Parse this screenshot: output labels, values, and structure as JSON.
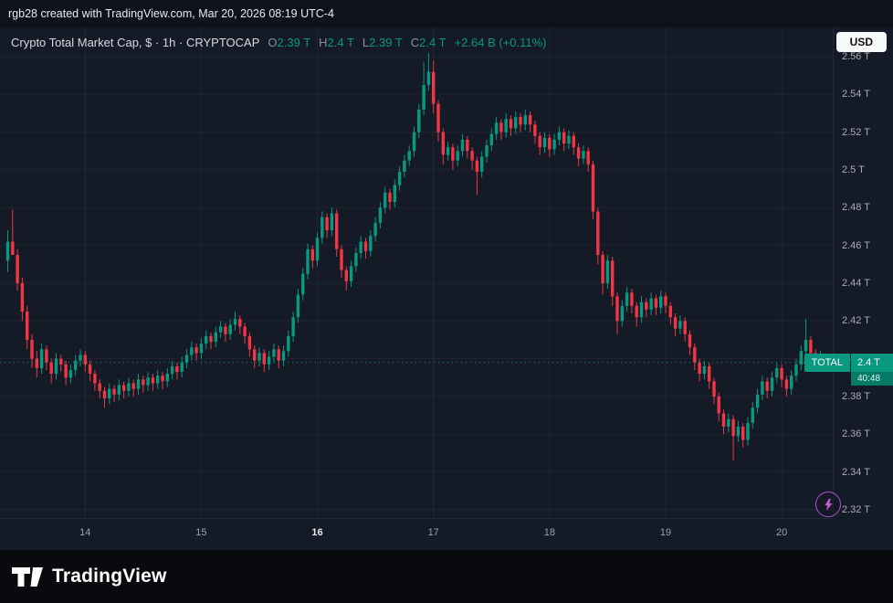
{
  "page": {
    "attribution": "rgb28 created with TradingView.com, Mar 20, 2026 08:19 UTC-4"
  },
  "header": {
    "symbol_title": "Crypto Total Market Cap, $ · 1h · CRYPTOCAP",
    "ohlc": {
      "o_label": "O",
      "o": "2.39 T",
      "h_label": "H",
      "h": "2.4 T",
      "l_label": "L",
      "l": "2.39 T",
      "c_label": "C",
      "c": "2.4 T",
      "change": "+2.64 B (+0.11%)"
    },
    "currency_button": "USD"
  },
  "price_label": {
    "tag": "TOTAL",
    "price": "2.4 T",
    "countdown": "40:48"
  },
  "footer": {
    "brand": "TradingView"
  },
  "colors": {
    "up": "#089981",
    "down": "#f23645",
    "grid": "rgba(160,170,195,0.08)",
    "axis_text": "#a7acb8",
    "label_accent": "#089981"
  },
  "chart_data": {
    "type": "candlestick",
    "title": "Crypto Total Market Cap",
    "symbol": "CRYPTOCAP:TOTAL",
    "interval": "1h",
    "currency": "USD",
    "unit": "trillions USD",
    "ylim": [
      2.3156,
      2.5755
    ],
    "y_ticks": [
      2.56,
      2.54,
      2.52,
      2.5,
      2.48,
      2.46,
      2.44,
      2.42,
      2.4,
      2.38,
      2.36,
      2.34,
      2.32
    ],
    "last_price": 2.398,
    "x_axis": {
      "days": [
        {
          "label": "14",
          "candle_index": 16,
          "bold": false
        },
        {
          "label": "15",
          "candle_index": 40,
          "bold": false
        },
        {
          "label": "16",
          "candle_index": 64,
          "bold": true
        },
        {
          "label": "17",
          "candle_index": 88,
          "bold": false
        },
        {
          "label": "18",
          "candle_index": 112,
          "bold": false
        },
        {
          "label": "19",
          "candle_index": 136,
          "bold": false
        },
        {
          "label": "20",
          "candle_index": 160,
          "bold": false
        }
      ]
    },
    "candles": [
      [
        2.452,
        2.468,
        2.446,
        2.462
      ],
      [
        2.462,
        2.479,
        2.458,
        2.455
      ],
      [
        2.455,
        2.458,
        2.436,
        2.44
      ],
      [
        2.44,
        2.443,
        2.42,
        2.425
      ],
      [
        2.425,
        2.428,
        2.405,
        2.41
      ],
      [
        2.41,
        2.413,
        2.395,
        2.4
      ],
      [
        2.4,
        2.404,
        2.39,
        2.395
      ],
      [
        2.395,
        2.408,
        2.392,
        2.405
      ],
      [
        2.405,
        2.407,
        2.394,
        2.398
      ],
      [
        2.398,
        2.4,
        2.387,
        2.392
      ],
      [
        2.392,
        2.403,
        2.389,
        2.4
      ],
      [
        2.4,
        2.402,
        2.393,
        2.397
      ],
      [
        2.397,
        2.399,
        2.386,
        2.39
      ],
      [
        2.39,
        2.397,
        2.387,
        2.394
      ],
      [
        2.394,
        2.402,
        2.391,
        2.399
      ],
      [
        2.399,
        2.405,
        2.396,
        2.402
      ],
      [
        2.402,
        2.404,
        2.393,
        2.397
      ],
      [
        2.397,
        2.399,
        2.388,
        2.392
      ],
      [
        2.392,
        2.394,
        2.383,
        2.387
      ],
      [
        2.387,
        2.389,
        2.379,
        2.383
      ],
      [
        2.383,
        2.385,
        2.374,
        2.379
      ],
      [
        2.379,
        2.387,
        2.376,
        2.384
      ],
      [
        2.384,
        2.386,
        2.377,
        2.381
      ],
      [
        2.381,
        2.389,
        2.378,
        2.386
      ],
      [
        2.386,
        2.388,
        2.379,
        2.383
      ],
      [
        2.383,
        2.39,
        2.38,
        2.387
      ],
      [
        2.387,
        2.389,
        2.38,
        2.384
      ],
      [
        2.384,
        2.392,
        2.381,
        2.389
      ],
      [
        2.389,
        2.391,
        2.382,
        2.386
      ],
      [
        2.386,
        2.393,
        2.383,
        2.39
      ],
      [
        2.39,
        2.392,
        2.383,
        2.387
      ],
      [
        2.387,
        2.394,
        2.384,
        2.391
      ],
      [
        2.391,
        2.393,
        2.384,
        2.388
      ],
      [
        2.388,
        2.395,
        2.385,
        2.392
      ],
      [
        2.392,
        2.399,
        2.389,
        2.396
      ],
      [
        2.396,
        2.398,
        2.389,
        2.393
      ],
      [
        2.393,
        2.401,
        2.39,
        2.398
      ],
      [
        2.398,
        2.405,
        2.395,
        2.402
      ],
      [
        2.402,
        2.409,
        2.399,
        2.406
      ],
      [
        2.406,
        2.408,
        2.399,
        2.403
      ],
      [
        2.403,
        2.411,
        2.4,
        2.408
      ],
      [
        2.408,
        2.415,
        2.405,
        2.412
      ],
      [
        2.412,
        2.414,
        2.405,
        2.409
      ],
      [
        2.409,
        2.417,
        2.406,
        2.414
      ],
      [
        2.414,
        2.42,
        2.411,
        2.417
      ],
      [
        2.417,
        2.419,
        2.409,
        2.413
      ],
      [
        2.413,
        2.421,
        2.41,
        2.418
      ],
      [
        2.418,
        2.425,
        2.415,
        2.421
      ],
      [
        2.421,
        2.423,
        2.413,
        2.417
      ],
      [
        2.417,
        2.419,
        2.408,
        2.412
      ],
      [
        2.412,
        2.414,
        2.401,
        2.405
      ],
      [
        2.405,
        2.407,
        2.395,
        2.399
      ],
      [
        2.399,
        2.406,
        2.396,
        2.403
      ],
      [
        2.403,
        2.405,
        2.393,
        2.397
      ],
      [
        2.397,
        2.404,
        2.394,
        2.401
      ],
      [
        2.401,
        2.408,
        2.398,
        2.405
      ],
      [
        2.405,
        2.407,
        2.395,
        2.399
      ],
      [
        2.399,
        2.407,
        2.396,
        2.404
      ],
      [
        2.404,
        2.415,
        2.401,
        2.412
      ],
      [
        2.412,
        2.425,
        2.409,
        2.422
      ],
      [
        2.422,
        2.437,
        2.419,
        2.434
      ],
      [
        2.434,
        2.448,
        2.431,
        2.445
      ],
      [
        2.445,
        2.461,
        2.442,
        2.458
      ],
      [
        2.458,
        2.46,
        2.448,
        2.452
      ],
      [
        2.452,
        2.467,
        2.449,
        2.464
      ],
      [
        2.464,
        2.478,
        2.461,
        2.475
      ],
      [
        2.475,
        2.477,
        2.464,
        2.468
      ],
      [
        2.468,
        2.48,
        2.465,
        2.477
      ],
      [
        2.477,
        2.479,
        2.454,
        2.458
      ],
      [
        2.458,
        2.46,
        2.443,
        2.447
      ],
      [
        2.447,
        2.449,
        2.436,
        2.441
      ],
      [
        2.441,
        2.452,
        2.438,
        2.449
      ],
      [
        2.449,
        2.459,
        2.446,
        2.456
      ],
      [
        2.456,
        2.465,
        2.453,
        2.462
      ],
      [
        2.462,
        2.464,
        2.453,
        2.457
      ],
      [
        2.457,
        2.468,
        2.454,
        2.465
      ],
      [
        2.465,
        2.475,
        2.462,
        2.472
      ],
      [
        2.472,
        2.483,
        2.469,
        2.48
      ],
      [
        2.48,
        2.491,
        2.477,
        2.488
      ],
      [
        2.488,
        2.49,
        2.479,
        2.483
      ],
      [
        2.483,
        2.495,
        2.48,
        2.492
      ],
      [
        2.492,
        2.502,
        2.489,
        2.499
      ],
      [
        2.499,
        2.508,
        2.496,
        2.505
      ],
      [
        2.505,
        2.513,
        2.502,
        2.51
      ],
      [
        2.51,
        2.523,
        2.507,
        2.52
      ],
      [
        2.52,
        2.535,
        2.517,
        2.532
      ],
      [
        2.532,
        2.557,
        2.529,
        2.545
      ],
      [
        2.545,
        2.562,
        2.542,
        2.552
      ],
      [
        2.552,
        2.558,
        2.53,
        2.535
      ],
      [
        2.535,
        2.537,
        2.515,
        2.52
      ],
      [
        2.52,
        2.522,
        2.503,
        2.508
      ],
      [
        2.508,
        2.515,
        2.505,
        2.512
      ],
      [
        2.512,
        2.514,
        2.5,
        2.505
      ],
      [
        2.505,
        2.513,
        2.502,
        2.51
      ],
      [
        2.51,
        2.519,
        2.507,
        2.516
      ],
      [
        2.516,
        2.518,
        2.506,
        2.51
      ],
      [
        2.51,
        2.512,
        2.5,
        2.505
      ],
      [
        2.505,
        2.507,
        2.487,
        2.499
      ],
      [
        2.499,
        2.51,
        2.496,
        2.507
      ],
      [
        2.507,
        2.516,
        2.504,
        2.513
      ],
      [
        2.513,
        2.522,
        2.51,
        2.519
      ],
      [
        2.519,
        2.528,
        2.516,
        2.525
      ],
      [
        2.525,
        2.527,
        2.516,
        2.52
      ],
      [
        2.52,
        2.53,
        2.517,
        2.527
      ],
      [
        2.527,
        2.529,
        2.518,
        2.522
      ],
      [
        2.522,
        2.531,
        2.519,
        2.528
      ],
      [
        2.528,
        2.53,
        2.52,
        2.524
      ],
      [
        2.524,
        2.532,
        2.521,
        2.529
      ],
      [
        2.529,
        2.531,
        2.52,
        2.524
      ],
      [
        2.524,
        2.526,
        2.514,
        2.518
      ],
      [
        2.518,
        2.52,
        2.508,
        2.512
      ],
      [
        2.512,
        2.52,
        2.509,
        2.517
      ],
      [
        2.517,
        2.519,
        2.507,
        2.511
      ],
      [
        2.511,
        2.519,
        2.508,
        2.516
      ],
      [
        2.516,
        2.523,
        2.513,
        2.52
      ],
      [
        2.52,
        2.522,
        2.51,
        2.514
      ],
      [
        2.514,
        2.521,
        2.511,
        2.518
      ],
      [
        2.518,
        2.52,
        2.508,
        2.512
      ],
      [
        2.512,
        2.514,
        2.502,
        2.506
      ],
      [
        2.506,
        2.513,
        2.503,
        2.51
      ],
      [
        2.51,
        2.512,
        2.499,
        2.503
      ],
      [
        2.503,
        2.505,
        2.474,
        2.478
      ],
      [
        2.478,
        2.48,
        2.45,
        2.455
      ],
      [
        2.455,
        2.457,
        2.434,
        2.44
      ],
      [
        2.44,
        2.455,
        2.437,
        2.452
      ],
      [
        2.452,
        2.454,
        2.428,
        2.433
      ],
      [
        2.433,
        2.435,
        2.413,
        2.42
      ],
      [
        2.42,
        2.431,
        2.417,
        2.428
      ],
      [
        2.428,
        2.438,
        2.425,
        2.435
      ],
      [
        2.435,
        2.437,
        2.424,
        2.428
      ],
      [
        2.428,
        2.43,
        2.417,
        2.422
      ],
      [
        2.422,
        2.433,
        2.419,
        2.43
      ],
      [
        2.43,
        2.432,
        2.422,
        2.426
      ],
      [
        2.426,
        2.435,
        2.423,
        2.432
      ],
      [
        2.432,
        2.434,
        2.423,
        2.427
      ],
      [
        2.427,
        2.436,
        2.424,
        2.433
      ],
      [
        2.433,
        2.435,
        2.424,
        2.428
      ],
      [
        2.428,
        2.43,
        2.418,
        2.422
      ],
      [
        2.422,
        2.424,
        2.412,
        2.416
      ],
      [
        2.416,
        2.423,
        2.413,
        2.42
      ],
      [
        2.42,
        2.422,
        2.409,
        2.413
      ],
      [
        2.413,
        2.415,
        2.402,
        2.406
      ],
      [
        2.406,
        2.408,
        2.394,
        2.398
      ],
      [
        2.398,
        2.4,
        2.388,
        2.392
      ],
      [
        2.392,
        2.399,
        2.389,
        2.396
      ],
      [
        2.396,
        2.398,
        2.384,
        2.388
      ],
      [
        2.388,
        2.39,
        2.376,
        2.38
      ],
      [
        2.38,
        2.382,
        2.367,
        2.371
      ],
      [
        2.371,
        2.373,
        2.36,
        2.364
      ],
      [
        2.364,
        2.371,
        2.361,
        2.368
      ],
      [
        2.368,
        2.37,
        2.346,
        2.359
      ],
      [
        2.359,
        2.367,
        2.356,
        2.364
      ],
      [
        2.364,
        2.366,
        2.353,
        2.357
      ],
      [
        2.357,
        2.369,
        2.354,
        2.366
      ],
      [
        2.366,
        2.377,
        2.363,
        2.374
      ],
      [
        2.374,
        2.384,
        2.371,
        2.381
      ],
      [
        2.381,
        2.391,
        2.378,
        2.388
      ],
      [
        2.388,
        2.39,
        2.379,
        2.383
      ],
      [
        2.383,
        2.393,
        2.38,
        2.39
      ],
      [
        2.39,
        2.398,
        2.387,
        2.395
      ],
      [
        2.395,
        2.397,
        2.385,
        2.389
      ],
      [
        2.389,
        2.391,
        2.38,
        2.384
      ],
      [
        2.384,
        2.394,
        2.381,
        2.391
      ],
      [
        2.391,
        2.4,
        2.388,
        2.397
      ],
      [
        2.397,
        2.407,
        2.394,
        2.404
      ],
      [
        2.404,
        2.421,
        2.401,
        2.41
      ],
      [
        2.41,
        2.412,
        2.399,
        2.403
      ],
      [
        2.403,
        2.405,
        2.393,
        2.398
      ],
      [
        2.398,
        2.404,
        2.395,
        2.4
      ]
    ]
  }
}
